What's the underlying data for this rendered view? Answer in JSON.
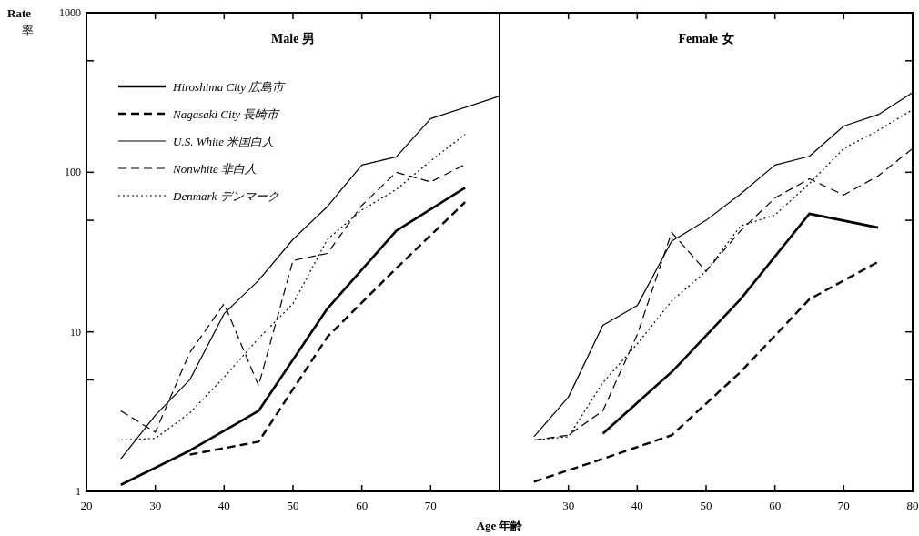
{
  "chart_data": [
    {
      "type": "line",
      "title": "Male 男",
      "ylabel": "Rate 率",
      "xlabel": "Age 年齢",
      "log": true,
      "legend": "top left",
      "grid": false,
      "xlim": [
        20,
        80
      ],
      "xticks": [
        20,
        30,
        40,
        50,
        60,
        70,
        {
          "value": 80,
          "label": null
        }
      ],
      "ylim": [
        1,
        1000
      ],
      "yticks": [
        1,
        {
          "value": 5,
          "label": null
        },
        10,
        {
          "value": 50,
          "label": null
        },
        100,
        {
          "value": 500,
          "label": null
        },
        1000
      ],
      "series": [
        {
          "name": "Hiroshima City 広島市",
          "color": "#000000",
          "line_style": "solid",
          "x": [
            25,
            35,
            45,
            55,
            65,
            75
          ],
          "values": [
            1.1,
            1.8,
            3.2,
            14,
            43,
            80
          ]
        },
        {
          "name": "Nagasaki City 長崎市",
          "color": "#000000",
          "line_style": "dashed",
          "x": [
            35,
            45,
            55,
            65,
            75
          ],
          "values": [
            1.7,
            2.05,
            9.3,
            25,
            65
          ]
        },
        {
          "name": "U.S. White 米国白人",
          "color": "#000000",
          "line_style": "solid",
          "x": [
            25,
            30,
            35,
            40,
            45,
            50,
            55,
            60,
            65,
            70,
            80
          ],
          "values": [
            1.6,
            3.0,
            5.0,
            13,
            21,
            38,
            61,
            111,
            125,
            217,
            300
          ]
        },
        {
          "name": "Nonwhite 非白人",
          "color": "#000000",
          "line_style": "dashed",
          "x": [
            25,
            30,
            35,
            40,
            45,
            50,
            55,
            60,
            65,
            70,
            75
          ],
          "values": [
            3.2,
            2.35,
            7.4,
            15,
            4.6,
            28,
            31,
            62,
            100,
            87,
            112
          ]
        },
        {
          "name": "Denmark デンマーク",
          "color": "#000000",
          "line_style": "dotted",
          "x": [
            25,
            30,
            35,
            40,
            45,
            50,
            55,
            60,
            65,
            70,
            75
          ],
          "values": [
            2.1,
            2.15,
            3.1,
            5.2,
            9.1,
            15,
            38,
            58,
            78,
            118,
            173
          ]
        }
      ]
    },
    {
      "type": "line",
      "title": "Female 女",
      "log": true,
      "grid": false,
      "tick_labels": "x",
      "xlim": [
        20,
        80
      ],
      "xticks": [
        {
          "value": 20,
          "label": null
        },
        30,
        40,
        50,
        60,
        70,
        80
      ],
      "ylim": [
        1,
        1000
      ],
      "yticks": [
        1,
        {
          "value": 5,
          "label": null
        },
        10,
        {
          "value": 50,
          "label": null
        },
        100,
        {
          "value": 500,
          "label": null
        },
        1000
      ],
      "series": [
        {
          "color": "#000000",
          "line_style": "solid",
          "x": [
            35,
            45,
            55,
            65,
            75
          ],
          "values": [
            2.3,
            5.6,
            16,
            55,
            45
          ]
        },
        {
          "color": "#000000",
          "line_style": "dashed",
          "x": [
            25,
            35,
            45,
            55,
            65,
            75
          ],
          "values": [
            1.15,
            1.6,
            2.25,
            5.6,
            16,
            27.5
          ]
        },
        {
          "color": "#000000",
          "line_style": "solid",
          "x": [
            25,
            30,
            35,
            40,
            45,
            50,
            55,
            60,
            65,
            70,
            75,
            80
          ],
          "values": [
            2.2,
            3.9,
            11,
            14.6,
            37,
            50,
            73,
            111,
            126,
            195,
            230,
            316
          ]
        },
        {
          "color": "#000000",
          "line_style": "dashed",
          "x": [
            25,
            30,
            35,
            40,
            45,
            50,
            55,
            60,
            65,
            70,
            75,
            80
          ],
          "values": [
            2.1,
            2.25,
            3.2,
            9.6,
            42,
            24,
            43,
            69,
            91,
            72,
            95,
            141
          ]
        },
        {
          "color": "#000000",
          "line_style": "dotted",
          "x": [
            25,
            30,
            35,
            40,
            45,
            50,
            55,
            60,
            65,
            70,
            75,
            80
          ],
          "values": [
            2.1,
            2.2,
            4.8,
            8.4,
            15.6,
            24,
            46,
            54,
            85,
            141,
            183,
            247
          ]
        }
      ]
    }
  ]
}
